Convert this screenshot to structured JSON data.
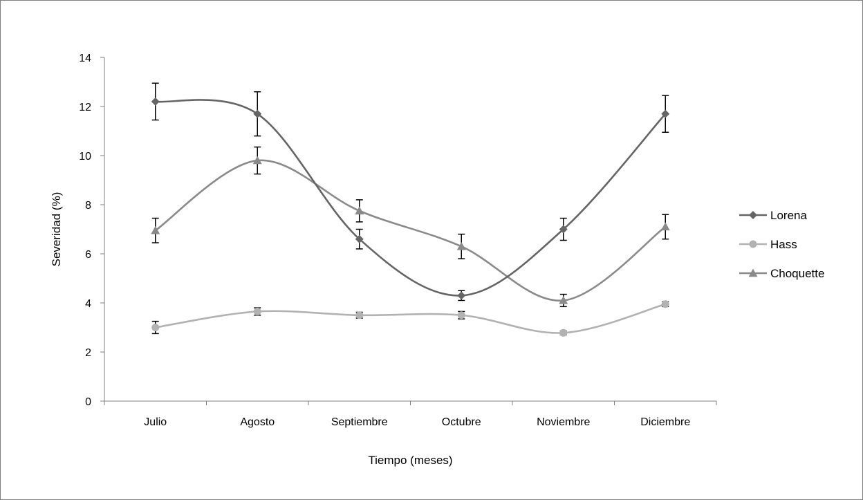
{
  "chart_data": {
    "type": "line",
    "xlabel": "Tiempo (meses)",
    "ylabel": "Severidad (%)",
    "categories": [
      "Julio",
      "Agosto",
      "Septiembre",
      "Octubre",
      "Noviembre",
      "Diciembre"
    ],
    "ylim": [
      0,
      14
    ],
    "yticks": [
      0,
      2,
      4,
      6,
      8,
      10,
      12,
      14
    ],
    "grid": false,
    "legend_position": "right",
    "smooth": true,
    "series": [
      {
        "name": "Lorena",
        "marker": "diamond",
        "color": "#656565",
        "values": [
          12.2,
          11.7,
          6.6,
          4.3,
          7.0,
          11.7
        ],
        "error": [
          0.75,
          0.9,
          0.4,
          0.2,
          0.45,
          0.75
        ]
      },
      {
        "name": "Hass",
        "marker": "circle",
        "color": "#b2b2b2",
        "values": [
          3.0,
          3.65,
          3.5,
          3.5,
          2.78,
          3.95
        ],
        "error": [
          0.25,
          0.15,
          0.12,
          0.15,
          0.08,
          0.1
        ]
      },
      {
        "name": "Choquette",
        "marker": "triangle",
        "color": "#8a8a8a",
        "values": [
          6.95,
          9.8,
          7.75,
          6.3,
          4.1,
          7.1
        ],
        "error": [
          0.5,
          0.55,
          0.45,
          0.5,
          0.25,
          0.5
        ]
      }
    ]
  }
}
